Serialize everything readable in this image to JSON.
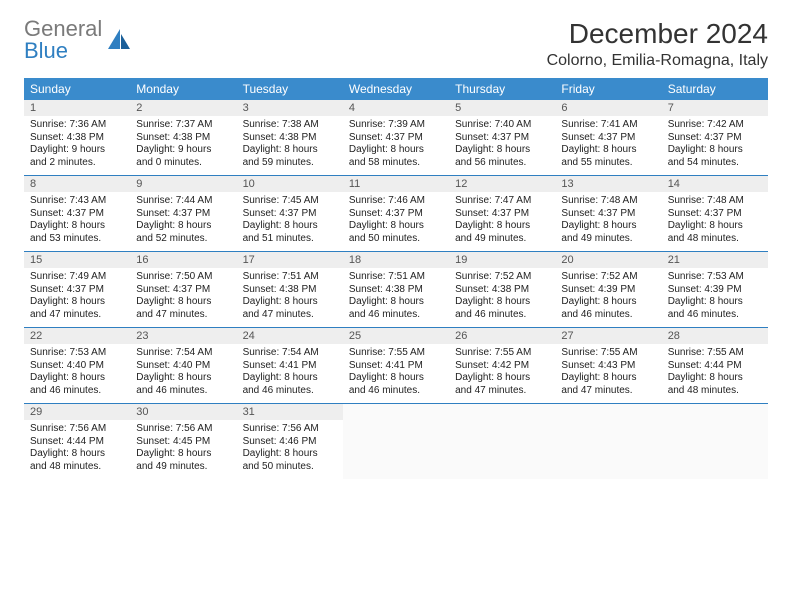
{
  "brand": {
    "word1": "General",
    "word2": "Blue"
  },
  "title": "December 2024",
  "location": "Colorno, Emilia-Romagna, Italy",
  "colors": {
    "header_bg": "#3a8bcc",
    "header_text": "#ffffff",
    "daynum_bg": "#eeeeee",
    "rule": "#2f7fc1",
    "brand_gray": "#7a7a7a",
    "brand_blue": "#2f7fc1"
  },
  "dow": [
    "Sunday",
    "Monday",
    "Tuesday",
    "Wednesday",
    "Thursday",
    "Friday",
    "Saturday"
  ],
  "weeks": [
    [
      {
        "n": 1,
        "sunrise": "7:36 AM",
        "sunset": "4:38 PM",
        "dl": "9 hours and 2 minutes."
      },
      {
        "n": 2,
        "sunrise": "7:37 AM",
        "sunset": "4:38 PM",
        "dl": "9 hours and 0 minutes."
      },
      {
        "n": 3,
        "sunrise": "7:38 AM",
        "sunset": "4:38 PM",
        "dl": "8 hours and 59 minutes."
      },
      {
        "n": 4,
        "sunrise": "7:39 AM",
        "sunset": "4:37 PM",
        "dl": "8 hours and 58 minutes."
      },
      {
        "n": 5,
        "sunrise": "7:40 AM",
        "sunset": "4:37 PM",
        "dl": "8 hours and 56 minutes."
      },
      {
        "n": 6,
        "sunrise": "7:41 AM",
        "sunset": "4:37 PM",
        "dl": "8 hours and 55 minutes."
      },
      {
        "n": 7,
        "sunrise": "7:42 AM",
        "sunset": "4:37 PM",
        "dl": "8 hours and 54 minutes."
      }
    ],
    [
      {
        "n": 8,
        "sunrise": "7:43 AM",
        "sunset": "4:37 PM",
        "dl": "8 hours and 53 minutes."
      },
      {
        "n": 9,
        "sunrise": "7:44 AM",
        "sunset": "4:37 PM",
        "dl": "8 hours and 52 minutes."
      },
      {
        "n": 10,
        "sunrise": "7:45 AM",
        "sunset": "4:37 PM",
        "dl": "8 hours and 51 minutes."
      },
      {
        "n": 11,
        "sunrise": "7:46 AM",
        "sunset": "4:37 PM",
        "dl": "8 hours and 50 minutes."
      },
      {
        "n": 12,
        "sunrise": "7:47 AM",
        "sunset": "4:37 PM",
        "dl": "8 hours and 49 minutes."
      },
      {
        "n": 13,
        "sunrise": "7:48 AM",
        "sunset": "4:37 PM",
        "dl": "8 hours and 49 minutes."
      },
      {
        "n": 14,
        "sunrise": "7:48 AM",
        "sunset": "4:37 PM",
        "dl": "8 hours and 48 minutes."
      }
    ],
    [
      {
        "n": 15,
        "sunrise": "7:49 AM",
        "sunset": "4:37 PM",
        "dl": "8 hours and 47 minutes."
      },
      {
        "n": 16,
        "sunrise": "7:50 AM",
        "sunset": "4:37 PM",
        "dl": "8 hours and 47 minutes."
      },
      {
        "n": 17,
        "sunrise": "7:51 AM",
        "sunset": "4:38 PM",
        "dl": "8 hours and 47 minutes."
      },
      {
        "n": 18,
        "sunrise": "7:51 AM",
        "sunset": "4:38 PM",
        "dl": "8 hours and 46 minutes."
      },
      {
        "n": 19,
        "sunrise": "7:52 AM",
        "sunset": "4:38 PM",
        "dl": "8 hours and 46 minutes."
      },
      {
        "n": 20,
        "sunrise": "7:52 AM",
        "sunset": "4:39 PM",
        "dl": "8 hours and 46 minutes."
      },
      {
        "n": 21,
        "sunrise": "7:53 AM",
        "sunset": "4:39 PM",
        "dl": "8 hours and 46 minutes."
      }
    ],
    [
      {
        "n": 22,
        "sunrise": "7:53 AM",
        "sunset": "4:40 PM",
        "dl": "8 hours and 46 minutes."
      },
      {
        "n": 23,
        "sunrise": "7:54 AM",
        "sunset": "4:40 PM",
        "dl": "8 hours and 46 minutes."
      },
      {
        "n": 24,
        "sunrise": "7:54 AM",
        "sunset": "4:41 PM",
        "dl": "8 hours and 46 minutes."
      },
      {
        "n": 25,
        "sunrise": "7:55 AM",
        "sunset": "4:41 PM",
        "dl": "8 hours and 46 minutes."
      },
      {
        "n": 26,
        "sunrise": "7:55 AM",
        "sunset": "4:42 PM",
        "dl": "8 hours and 47 minutes."
      },
      {
        "n": 27,
        "sunrise": "7:55 AM",
        "sunset": "4:43 PM",
        "dl": "8 hours and 47 minutes."
      },
      {
        "n": 28,
        "sunrise": "7:55 AM",
        "sunset": "4:44 PM",
        "dl": "8 hours and 48 minutes."
      }
    ],
    [
      {
        "n": 29,
        "sunrise": "7:56 AM",
        "sunset": "4:44 PM",
        "dl": "8 hours and 48 minutes."
      },
      {
        "n": 30,
        "sunrise": "7:56 AM",
        "sunset": "4:45 PM",
        "dl": "8 hours and 49 minutes."
      },
      {
        "n": 31,
        "sunrise": "7:56 AM",
        "sunset": "4:46 PM",
        "dl": "8 hours and 50 minutes."
      },
      null,
      null,
      null,
      null
    ]
  ],
  "labels": {
    "sunrise": "Sunrise: ",
    "sunset": "Sunset: ",
    "daylight": "Daylight: "
  }
}
